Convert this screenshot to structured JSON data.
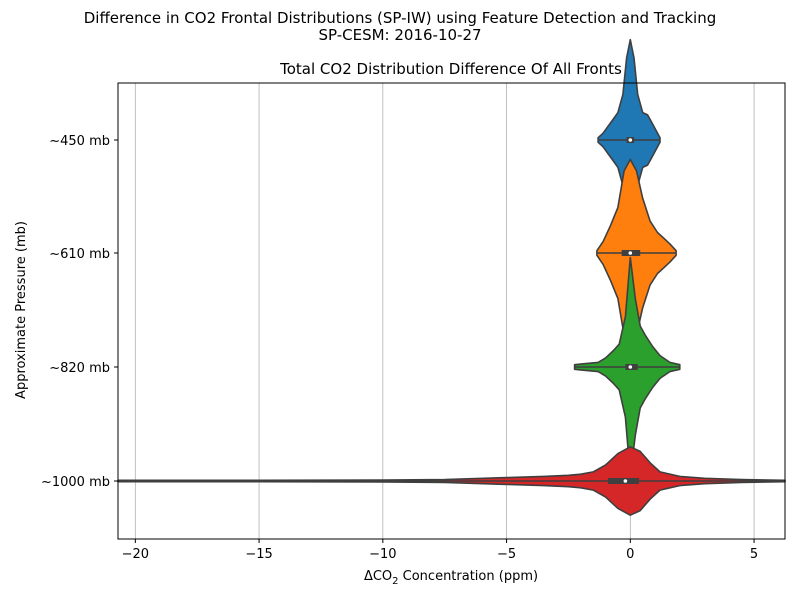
{
  "figure": {
    "suptitle_line1": "Difference in CO2 Frontal Distributions (SP-IW) using Feature Detection and Tracking",
    "suptitle_line2": "SP-CESM: 2016-10-27"
  },
  "chart_data": {
    "type": "violin",
    "orientation": "horizontal",
    "title": "Total CO2 Distribution Difference Of All Fronts",
    "xlabel_prefix": "ΔCO",
    "xlabel_sub": "2",
    "xlabel_suffix": " Concentration (ppm)",
    "ylabel": "Approximate Pressure (mb)",
    "xlim": [
      -20.7,
      6.25
    ],
    "xticks": [
      -20,
      -15,
      -10,
      -5,
      0,
      5
    ],
    "xtick_labels": [
      "−20",
      "−15",
      "−10",
      "−5",
      "0",
      "5"
    ],
    "grid": "x",
    "categories": [
      "~450 mb",
      "~610 mb",
      "~820 mb",
      "~1000 mb"
    ],
    "series": [
      {
        "category": "~450 mb",
        "color": "#1f77b4",
        "min": -1.3,
        "max": 1.2,
        "q1": -0.15,
        "median": 0.0,
        "q3": 0.15,
        "profile": [
          [
            -1.3,
            0.01
          ],
          [
            -1.1,
            0.03
          ],
          [
            -0.9,
            0.06
          ],
          [
            -0.7,
            0.09
          ],
          [
            -0.5,
            0.12
          ],
          [
            -0.3,
            0.2
          ],
          [
            -0.15,
            0.36
          ],
          [
            0.0,
            0.44
          ],
          [
            0.15,
            0.36
          ],
          [
            0.3,
            0.2
          ],
          [
            0.5,
            0.12
          ],
          [
            0.7,
            0.11
          ],
          [
            0.85,
            0.08
          ],
          [
            1.0,
            0.05
          ],
          [
            1.2,
            0.01
          ]
        ]
      },
      {
        "category": "~610 mb",
        "color": "#ff7f0e",
        "min": -1.35,
        "max": 1.85,
        "q1": -0.35,
        "median": 0.0,
        "q3": 0.4,
        "profile": [
          [
            -1.35,
            0.01
          ],
          [
            -1.1,
            0.05
          ],
          [
            -0.8,
            0.12
          ],
          [
            -0.5,
            0.2
          ],
          [
            -0.25,
            0.36
          ],
          [
            0.0,
            0.41
          ],
          [
            0.25,
            0.36
          ],
          [
            0.5,
            0.24
          ],
          [
            0.8,
            0.14
          ],
          [
            1.1,
            0.09
          ],
          [
            1.4,
            0.06
          ],
          [
            1.6,
            0.04
          ],
          [
            1.85,
            0.01
          ]
        ]
      },
      {
        "category": "~820 mb",
        "color": "#2ca02c",
        "min": -2.25,
        "max": 2.0,
        "q1": -0.2,
        "median": 0.0,
        "q3": 0.3,
        "profile": [
          [
            -2.25,
            0.01
          ],
          [
            -1.8,
            0.015
          ],
          [
            -1.3,
            0.02
          ],
          [
            -1.0,
            0.04
          ],
          [
            -0.7,
            0.07
          ],
          [
            -0.45,
            0.1
          ],
          [
            -0.2,
            0.22
          ],
          [
            0.0,
            0.48
          ],
          [
            0.2,
            0.3
          ],
          [
            0.4,
            0.18
          ],
          [
            0.6,
            0.14
          ],
          [
            0.9,
            0.09
          ],
          [
            1.2,
            0.05
          ],
          [
            1.6,
            0.02
          ],
          [
            2.0,
            0.01
          ]
        ]
      },
      {
        "category": "~1000 mb",
        "color": "#d62728",
        "min": -20.7,
        "max": 6.25,
        "q1": -0.9,
        "median": -0.2,
        "q3": 0.35,
        "profile": [
          [
            -20.7,
            0.003
          ],
          [
            -15,
            0.003
          ],
          [
            -10,
            0.004
          ],
          [
            -7.5,
            0.006
          ],
          [
            -5,
            0.015
          ],
          [
            -3.5,
            0.02
          ],
          [
            -2.5,
            0.025
          ],
          [
            -2,
            0.03
          ],
          [
            -1.5,
            0.04
          ],
          [
            -1,
            0.07
          ],
          [
            -0.5,
            0.12
          ],
          [
            0,
            0.15
          ],
          [
            0.4,
            0.13
          ],
          [
            0.8,
            0.08
          ],
          [
            1.2,
            0.04
          ],
          [
            2,
            0.02
          ],
          [
            3,
            0.012
          ],
          [
            4.5,
            0.006
          ],
          [
            6.25,
            0.003
          ]
        ]
      }
    ]
  }
}
